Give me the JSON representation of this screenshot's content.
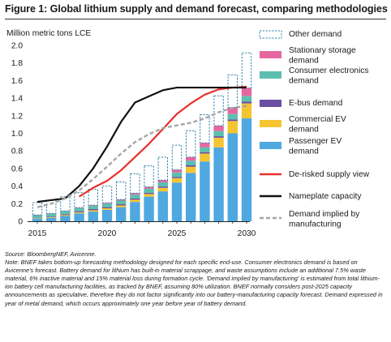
{
  "figure": {
    "title": "Figure 1: Global lithium supply and demand forecast, comparing methodologies",
    "source": "Source: BloombergNEF,  Avicenne.",
    "note": "Note: BNEF takes bottom-up forecasting methodology designed for each specific end-use. Consumer electronics demand is based on Avicenne's forecast. Battery demand for lithium has built-in material scrappage, and waste assumptions include an additional 7.5% waste material, 6% inactive material and 15% material loss during formation cycle. 'Demand implied by manufacturing' is estimated from total lithium-ion battery cell manufacturing facilities, as tracked by BNEF, assuming 80% utilization. BNEF normally considers post-2025 capacity announcements as speculative, therefore they do not factor significantly into our battery-manufacturing capacity forecast. Demand expressed in year of metal demand, which occurs approximately one year before year of battery demand."
  },
  "chart_data": {
    "type": "bar",
    "ylabel": "Million metric tons LCE",
    "ylim": [
      0,
      2.0
    ],
    "yticks": [
      "0",
      "0.2",
      "0.4",
      "0.6",
      "0.8",
      "1.0",
      "1.2",
      "1.4",
      "1.6",
      "1.8",
      "2.0"
    ],
    "xticks": [
      "2015",
      "2020",
      "2025",
      "2030"
    ],
    "x": [
      2015,
      2016,
      2017,
      2018,
      2019,
      2020,
      2021,
      2022,
      2023,
      2024,
      2025,
      2026,
      2027,
      2028,
      2029,
      2030
    ],
    "grid": false,
    "legend_placement": "right",
    "stacked_series": [
      {
        "name": "Passenger EV demand",
        "color": "#4fa8e0",
        "values": [
          0.03,
          0.04,
          0.06,
          0.09,
          0.11,
          0.13,
          0.16,
          0.22,
          0.28,
          0.34,
          0.44,
          0.55,
          0.68,
          0.84,
          1.0,
          1.17
        ]
      },
      {
        "name": "Commercial EV demand",
        "color": "#f5c531",
        "values": [
          0.005,
          0.007,
          0.01,
          0.012,
          0.015,
          0.017,
          0.02,
          0.025,
          0.03,
          0.04,
          0.05,
          0.07,
          0.09,
          0.11,
          0.14,
          0.17
        ]
      },
      {
        "name": "E-bus demand",
        "color": "#6a4fa3",
        "values": [
          0.005,
          0.007,
          0.01,
          0.012,
          0.013,
          0.013,
          0.013,
          0.014,
          0.014,
          0.015,
          0.015,
          0.016,
          0.016,
          0.017,
          0.018,
          0.02
        ]
      },
      {
        "name": "Consumer electronics demand",
        "color": "#5cbfb0",
        "values": [
          0.03,
          0.032,
          0.034,
          0.036,
          0.038,
          0.04,
          0.042,
          0.044,
          0.046,
          0.048,
          0.05,
          0.053,
          0.056,
          0.059,
          0.062,
          0.065
        ]
      },
      {
        "name": "Stationary storage demand",
        "color": "#e667a0",
        "values": [
          0.002,
          0.003,
          0.004,
          0.005,
          0.007,
          0.009,
          0.012,
          0.016,
          0.02,
          0.025,
          0.03,
          0.04,
          0.05,
          0.06,
          0.075,
          0.09
        ]
      },
      {
        "name": "Other demand",
        "color": "#2f7fa8",
        "style": "dashed-outline",
        "values": [
          0.14,
          0.15,
          0.16,
          0.17,
          0.18,
          0.19,
          0.2,
          0.22,
          0.24,
          0.26,
          0.28,
          0.3,
          0.32,
          0.34,
          0.37,
          0.4
        ]
      }
    ],
    "line_series": [
      {
        "name": "De-risked supply view",
        "color": "#e8302a",
        "x": [
          2018,
          2019,
          2020,
          2021,
          2022,
          2023,
          2024,
          2025,
          2026,
          2027,
          2028,
          2029,
          2030
        ],
        "values": [
          0.28,
          0.38,
          0.46,
          0.58,
          0.73,
          0.88,
          1.05,
          1.22,
          1.34,
          1.44,
          1.5,
          1.52,
          1.53
        ]
      },
      {
        "name": "Nameplate capacity",
        "color": "#111111",
        "x": [
          2015,
          2016,
          2017,
          2018,
          2019,
          2020,
          2021,
          2022,
          2023,
          2024,
          2025,
          2026,
          2027,
          2028,
          2029,
          2030
        ],
        "values": [
          0.22,
          0.24,
          0.26,
          0.4,
          0.6,
          0.85,
          1.13,
          1.35,
          1.42,
          1.49,
          1.52,
          1.52,
          1.52,
          1.52,
          1.52,
          1.52
        ]
      },
      {
        "name": "Demand implied by manufacturing",
        "color": "#a6a6a6",
        "style": "dashed",
        "x": [
          2015,
          2016,
          2017,
          2018,
          2019,
          2020,
          2021,
          2022,
          2023,
          2024,
          2025,
          2026,
          2027,
          2028,
          2029,
          2030
        ],
        "values": [
          0.16,
          0.2,
          0.26,
          0.35,
          0.48,
          0.62,
          0.77,
          0.9,
          0.99,
          1.06,
          1.09,
          1.12,
          1.17,
          1.24,
          1.29,
          1.31
        ]
      }
    ],
    "legend": [
      {
        "name": "Other demand",
        "lines": [
          "Other demand"
        ],
        "kind": "dashed-box",
        "color": "#2f7fa8"
      },
      {
        "name": "Stationary storage demand",
        "lines": [
          "Stationary storage",
          "demand"
        ],
        "kind": "box",
        "color": "#e667a0"
      },
      {
        "name": "Consumer electronics demand",
        "lines": [
          "Consumer electronics",
          "demand"
        ],
        "kind": "box",
        "color": "#5cbfb0"
      },
      {
        "name": "E-bus demand",
        "lines": [
          "E-bus demand"
        ],
        "kind": "box",
        "color": "#6a4fa3"
      },
      {
        "name": "Commercial EV demand",
        "lines": [
          "Commercial EV",
          "demand"
        ],
        "kind": "box",
        "color": "#f5c531"
      },
      {
        "name": "Passenger EV demand",
        "lines": [
          "Passenger EV",
          "demand"
        ],
        "kind": "box",
        "color": "#4fa8e0"
      },
      {
        "name": "De-risked supply view",
        "lines": [
          "De-risked supply view"
        ],
        "kind": "line",
        "color": "#e8302a"
      },
      {
        "name": "Nameplate capacity",
        "lines": [
          "Nameplate capacity"
        ],
        "kind": "line",
        "color": "#111111"
      },
      {
        "name": "Demand implied by manufacturing",
        "lines": [
          "Demand implied by",
          "manufacturing"
        ],
        "kind": "dashed-line",
        "color": "#a6a6a6"
      }
    ]
  }
}
